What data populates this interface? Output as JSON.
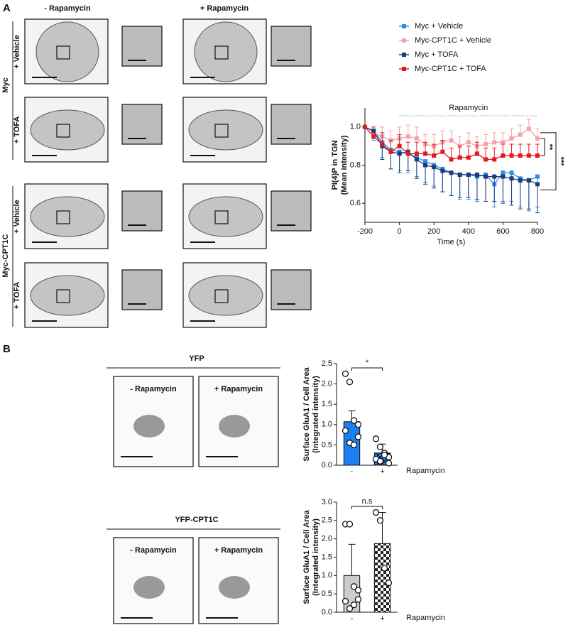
{
  "figure": {
    "panel_a": "A",
    "panel_b": "B",
    "a_columns": [
      "- Rapamycin",
      "+ Rapamycin"
    ],
    "a_groups": [
      "Myc",
      "Myc-CPT1C"
    ],
    "a_rows": [
      "+ Vehicle",
      "+ TOFA",
      "+ Vehicle",
      "+ TOFA"
    ],
    "b_groups": [
      "YFP",
      "YFP-CPT1C"
    ],
    "b_images": [
      "- Rapamycin",
      "+ Rapamycin",
      "- Rapamycin",
      "+ Rapamycin"
    ]
  },
  "chart_data": [
    {
      "type": "line",
      "ylabel": [
        "PI(4)P in TGN",
        "(Mean intensity)"
      ],
      "xlabel": "Time (s)",
      "annotations": [
        "Rapamycin",
        "**",
        "***"
      ],
      "x": [
        -200,
        -150,
        -100,
        -50,
        0,
        50,
        100,
        150,
        200,
        250,
        300,
        350,
        400,
        450,
        500,
        550,
        600,
        650,
        700,
        750,
        800
      ],
      "xlim": [
        -200,
        800
      ],
      "xticks": [
        -200,
        0,
        200,
        400,
        600,
        800
      ],
      "ylim": [
        0.5,
        1.1
      ],
      "yticks": [
        0.6,
        0.8,
        {
          "value": 1,
          "label": "1.0"
        }
      ],
      "series": [
        {
          "name": "Myc + Vehicle",
          "color": "#2f8ee8",
          "error_direction": "down",
          "values": [
            1.0,
            0.98,
            0.92,
            0.88,
            0.87,
            0.86,
            0.84,
            0.82,
            0.8,
            0.78,
            0.76,
            0.75,
            0.75,
            0.74,
            0.75,
            0.7,
            0.76,
            0.76,
            0.73,
            0.72,
            0.74
          ],
          "errors": [
            0,
            0.05,
            0.08,
            0.1,
            0.1,
            0.1,
            0.1,
            0.11,
            0.11,
            0.12,
            0.12,
            0.13,
            0.13,
            0.13,
            0.14,
            0.12,
            0.15,
            0.15,
            0.15,
            0.16,
            0.16
          ]
        },
        {
          "name": "Myc-CPT1C + Vehicle",
          "color": "#f4a1ad",
          "error_direction": "up",
          "values": [
            1.0,
            0.97,
            0.95,
            0.93,
            0.94,
            0.95,
            0.94,
            0.91,
            0.9,
            0.92,
            0.93,
            0.9,
            0.92,
            0.9,
            0.91,
            0.92,
            0.92,
            0.94,
            0.96,
            0.99,
            0.94
          ],
          "errors": [
            0,
            0.03,
            0.05,
            0.05,
            0.06,
            0.06,
            0.06,
            0.05,
            0.06,
            0.06,
            0.05,
            0.05,
            0.05,
            0.05,
            0.05,
            0.05,
            0.05,
            0.05,
            0.05,
            0.05,
            0.05
          ]
        },
        {
          "name": "Myc + TOFA",
          "color": "#1c3b78",
          "error_direction": "down",
          "values": [
            1.0,
            0.98,
            0.9,
            0.87,
            0.86,
            0.87,
            0.83,
            0.8,
            0.79,
            0.77,
            0.76,
            0.75,
            0.75,
            0.75,
            0.74,
            0.74,
            0.74,
            0.73,
            0.72,
            0.72,
            0.7
          ],
          "errors": [
            0,
            0.04,
            0.07,
            0.09,
            0.1,
            0.1,
            0.1,
            0.1,
            0.11,
            0.11,
            0.12,
            0.12,
            0.12,
            0.13,
            0.13,
            0.13,
            0.14,
            0.14,
            0.15,
            0.15,
            0.15
          ]
        },
        {
          "name": "Myc-CPT1C + TOFA",
          "color": "#e8161e",
          "error_direction": "up",
          "values": [
            1.0,
            0.95,
            0.91,
            0.87,
            0.9,
            0.86,
            0.86,
            0.86,
            0.85,
            0.87,
            0.83,
            0.84,
            0.84,
            0.86,
            0.83,
            0.83,
            0.85,
            0.85,
            0.85,
            0.85,
            0.85
          ],
          "errors": [
            0,
            0.05,
            0.06,
            0.06,
            0.06,
            0.06,
            0.06,
            0.06,
            0.06,
            0.06,
            0.06,
            0.06,
            0.06,
            0.06,
            0.06,
            0.06,
            0.06,
            0.06,
            0.06,
            0.06,
            0.06
          ]
        }
      ]
    },
    {
      "type": "bar",
      "ylabel": [
        "Surface GluA1 / Cell Area",
        "(Integrated intensity)"
      ],
      "xlabel": "Rapamycin",
      "annotation": "*",
      "categories": [
        "-",
        "+"
      ],
      "values": [
        1.07,
        0.3
      ],
      "errors": [
        0.27,
        0.22
      ],
      "colors": [
        "#1a7ff0",
        "#1a7ff0"
      ],
      "patterns": [
        "solid",
        "hatch"
      ],
      "points": [
        [
          2.25,
          2.05,
          1.1,
          1.0,
          0.85,
          0.55,
          0.5,
          0.7
        ],
        [
          0.65,
          0.45,
          0.3,
          0.2,
          0.15,
          0.1,
          0.25,
          0.05
        ]
      ],
      "ylim": [
        0,
        2.5
      ],
      "yticks": [
        {
          "value": 0,
          "label": "0.0"
        },
        0.5,
        {
          "value": 1,
          "label": "1.0"
        },
        1.5,
        {
          "value": 2,
          "label": "2.0"
        },
        2.5
      ]
    },
    {
      "type": "bar",
      "ylabel": [
        "Surface GluA1 / Cell Area",
        "(Integrated intensity)"
      ],
      "xlabel": "Rapamycin",
      "annotation": "n.s",
      "categories": [
        "-",
        "+"
      ],
      "values": [
        1.0,
        1.87
      ],
      "errors": [
        0.85,
        0.85
      ],
      "colors": [
        "#cccccc",
        "#222222"
      ],
      "patterns": [
        "solid",
        "checker"
      ],
      "points": [
        [
          2.4,
          2.4,
          0.7,
          0.6,
          0.3,
          0.1,
          0.2,
          0.35
        ],
        [
          2.72,
          2.5,
          1.2,
          0.8
        ]
      ],
      "ylim": [
        0,
        3
      ],
      "yticks": [
        {
          "value": 0,
          "label": "0.0"
        },
        0.5,
        {
          "value": 1,
          "label": "1.0"
        },
        1.5,
        {
          "value": 2,
          "label": "2.0"
        },
        2.5,
        {
          "value": 3,
          "label": "3.0"
        }
      ]
    }
  ]
}
